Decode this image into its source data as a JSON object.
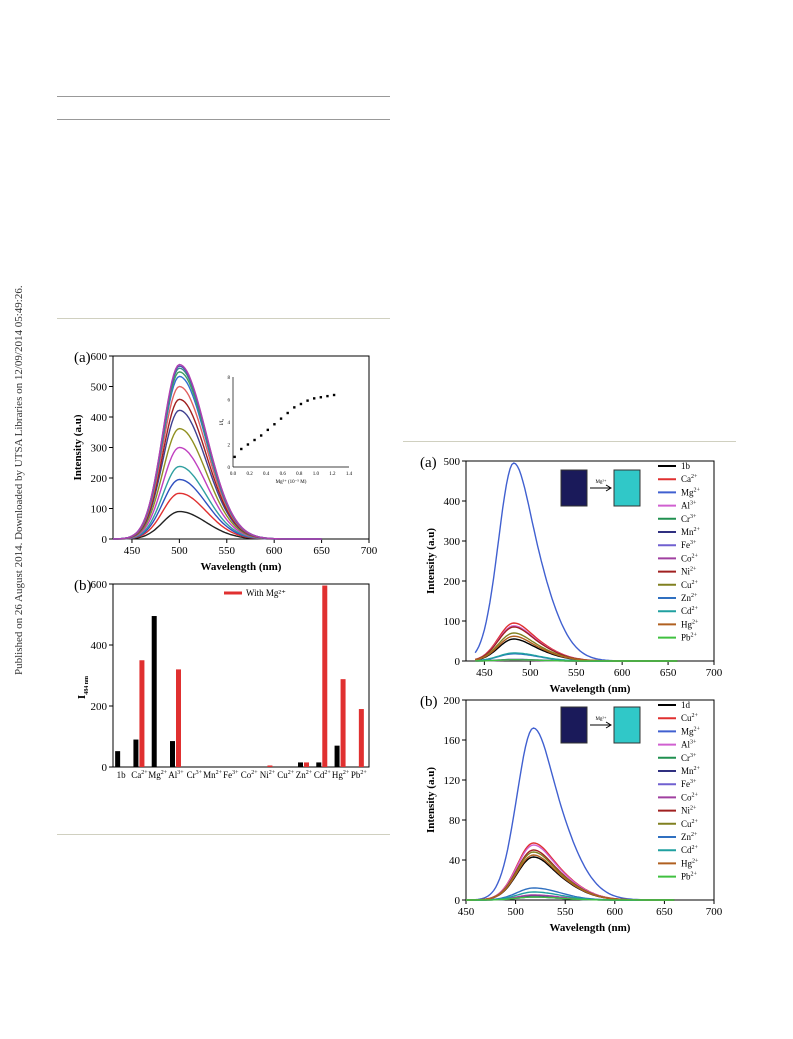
{
  "side_note": "Published on 26 August 2014. Downloaded by UTSA Libraries on 12/09/2014 05:49:26.",
  "chart_data": [
    {
      "id": "left_a",
      "panel_label": "(a)",
      "type": "line",
      "xlabel": "Wavelength (nm)",
      "ylabel": "Intensity (a.u)",
      "xlim": [
        430,
        700
      ],
      "ylim": [
        0,
        600
      ],
      "xticks": [
        450,
        500,
        550,
        600,
        650,
        700
      ],
      "yticks": [
        0,
        100,
        200,
        300,
        400,
        500,
        600
      ],
      "peak_wavelength": 500,
      "series_peaks": [
        90,
        150,
        195,
        238,
        300,
        362,
        422,
        458,
        500,
        533,
        548,
        560,
        567,
        572
      ],
      "series_colors": [
        "#222222",
        "#e03030",
        "#3050c0",
        "#30a0a0",
        "#c040c0",
        "#909020",
        "#404090",
        "#a02020",
        "#e06060",
        "#3070d0",
        "#40a060",
        "#3a8a8a",
        "#5050b0",
        "#b040b0"
      ],
      "inset": {
        "type": "scatter",
        "xlabel": "Mg²⁺ (10⁻⁵ M)",
        "ylabel": "I/I₀",
        "xlim": [
          0.0,
          1.4
        ],
        "ylim": [
          0,
          8
        ],
        "xticks": [
          0.0,
          0.2,
          0.4,
          0.6,
          0.8,
          1.0,
          1.2,
          1.4
        ],
        "yticks": [
          0,
          2,
          4,
          6,
          8
        ],
        "x": [
          0.02,
          0.1,
          0.18,
          0.26,
          0.34,
          0.42,
          0.5,
          0.58,
          0.66,
          0.74,
          0.82,
          0.9,
          0.98,
          1.06,
          1.14,
          1.22
        ],
        "y": [
          0.9,
          1.6,
          2.0,
          2.4,
          2.8,
          3.3,
          3.8,
          4.3,
          4.8,
          5.3,
          5.6,
          5.9,
          6.1,
          6.2,
          6.3,
          6.4
        ]
      }
    },
    {
      "id": "left_b",
      "panel_label": "(b)",
      "type": "bar",
      "ylabel": "I",
      "ylabel_sub": "484 nm",
      "ylim": [
        0,
        600
      ],
      "yticks": [
        0,
        200,
        400,
        600
      ],
      "legend": "With Mg²⁺",
      "categories": [
        "1b",
        "Ca",
        "Mg",
        "Al",
        "Cr",
        "Mn",
        "Fe",
        "Co",
        "Ni",
        "Cu",
        "Zn",
        "Cd",
        "Hg",
        "Pb"
      ],
      "category_sup": [
        "",
        "2+",
        "2+",
        "3+",
        "3+",
        "2+",
        "3+",
        "2+",
        "2+",
        "2+",
        "2+",
        "2+",
        "2+",
        "2+"
      ],
      "series": [
        {
          "color": "#000000",
          "values": [
            52,
            90,
            495,
            85,
            0,
            0,
            0,
            0,
            0,
            0,
            15,
            15,
            70,
            0
          ]
        },
        {
          "color": "#e03030",
          "values": [
            0,
            350,
            0,
            320,
            0,
            0,
            0,
            0,
            5,
            0,
            15,
            595,
            288,
            190
          ]
        }
      ]
    },
    {
      "id": "right_a",
      "panel_label": "(a)",
      "type": "line",
      "xlabel": "Wavelength (nm)",
      "ylabel": "Intensity (a.u)",
      "xlim": [
        430,
        700
      ],
      "ylim": [
        0,
        500
      ],
      "xticks": [
        450,
        500,
        550,
        600,
        650,
        700
      ],
      "yticks": [
        0,
        100,
        200,
        300,
        400,
        500
      ],
      "inset_arrow_label": "Mg²⁺",
      "legend": [
        {
          "label": "1b",
          "sup": "",
          "color": "#000000",
          "peak": 55
        },
        {
          "label": "Ca",
          "sup": "2+",
          "color": "#e03030",
          "peak": 95
        },
        {
          "label": "Mg",
          "sup": "2+",
          "color": "#4060d0",
          "peak": 495
        },
        {
          "label": "Al",
          "sup": "3+",
          "color": "#d060d0",
          "peak": 88
        },
        {
          "label": "Cr",
          "sup": "3+",
          "color": "#209050",
          "peak": 3
        },
        {
          "label": "Mn",
          "sup": "2+",
          "color": "#303080",
          "peak": 4
        },
        {
          "label": "Fe",
          "sup": "3+",
          "color": "#7060d0",
          "peak": 3
        },
        {
          "label": "Co",
          "sup": "2+",
          "color": "#a040a0",
          "peak": 2
        },
        {
          "label": "Ni",
          "sup": "2+",
          "color": "#a02020",
          "peak": 85
        },
        {
          "label": "Cu",
          "sup": "2+",
          "color": "#808020",
          "peak": 70
        },
        {
          "label": "Zn",
          "sup": "2+",
          "color": "#3070c0",
          "peak": 18
        },
        {
          "label": "Cd",
          "sup": "2+",
          "color": "#20a0a0",
          "peak": 20
        },
        {
          "label": "Hg",
          "sup": "2+",
          "color": "#b06020",
          "peak": 62
        },
        {
          "label": "Pb",
          "sup": "2+",
          "color": "#40c040",
          "peak": 3
        }
      ]
    },
    {
      "id": "right_b",
      "panel_label": "(b)",
      "type": "line",
      "xlabel": "Wavelength (nm)",
      "ylabel": "Intensity (a.u)",
      "xlim": [
        450,
        700
      ],
      "ylim": [
        0,
        200
      ],
      "xticks": [
        450,
        500,
        550,
        600,
        650,
        700
      ],
      "yticks": [
        0,
        40,
        80,
        120,
        160,
        200
      ],
      "inset_arrow_label": "Mg²⁺",
      "legend": [
        {
          "label": "1d",
          "sup": "",
          "color": "#000000",
          "peak": 43
        },
        {
          "label": "Cu",
          "sup": "2+",
          "color": "#e03030",
          "peak": 57
        },
        {
          "label": "Mg",
          "sup": "2+",
          "color": "#4060d0",
          "peak": 172
        },
        {
          "label": "Al",
          "sup": "3+",
          "color": "#d060d0",
          "peak": 55
        },
        {
          "label": "Cr",
          "sup": "3+",
          "color": "#209050",
          "peak": 3
        },
        {
          "label": "Mn",
          "sup": "2+",
          "color": "#303080",
          "peak": 4
        },
        {
          "label": "Fe",
          "sup": "3+",
          "color": "#7060d0",
          "peak": 3
        },
        {
          "label": "Co",
          "sup": "2+",
          "color": "#a040a0",
          "peak": 5
        },
        {
          "label": "Ni",
          "sup": "2+",
          "color": "#a02020",
          "peak": 50
        },
        {
          "label": "Cu",
          "sup": "2+",
          "color": "#808020",
          "peak": 48
        },
        {
          "label": "Zn",
          "sup": "2+",
          "color": "#3070c0",
          "peak": 12
        },
        {
          "label": "Cd",
          "sup": "2+",
          "color": "#20a0a0",
          "peak": 8
        },
        {
          "label": "Hg",
          "sup": "2+",
          "color": "#b06020",
          "peak": 45
        },
        {
          "label": "Pb",
          "sup": "2+",
          "color": "#40c040",
          "peak": 3
        }
      ]
    }
  ]
}
